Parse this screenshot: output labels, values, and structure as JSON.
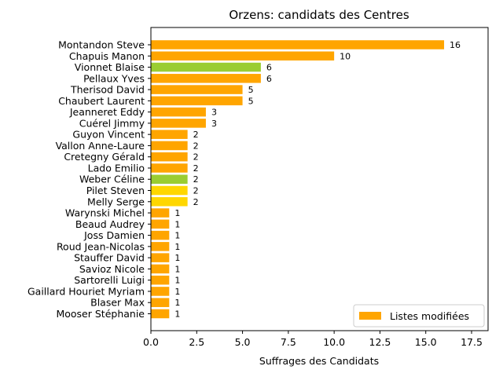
{
  "chart_data": {
    "type": "bar",
    "orientation": "horizontal",
    "title": "Orzens: candidats des Centres",
    "xlabel": "Suffrages des Candidats",
    "ylabel": "",
    "xlim": [
      0,
      18.4
    ],
    "xticks": [
      "0.0",
      "2.5",
      "5.0",
      "7.5",
      "10.0",
      "12.5",
      "15.0",
      "17.5"
    ],
    "grid": false,
    "legend": {
      "placement": "bottom-right",
      "entries": [
        {
          "label": "Listes modifiées",
          "color": "#FFA500"
        }
      ]
    },
    "categories": [
      "Montandon Steve",
      "Chapuis Manon",
      "Vionnet Blaise",
      "Pellaux Yves",
      "Therisod David",
      "Chaubert Laurent",
      "Jeanneret Eddy",
      "Cuérel Jimmy",
      "Guyon Vincent",
      "Vallon Anne-Laure",
      "Cretegny Gérald",
      "Lado Emilio",
      "Weber Céline",
      "Pilet Steven",
      "Melly Serge",
      "Warynski Michel",
      "Beaud Audrey",
      "Joss Damien",
      "Roud Jean-Nicolas",
      "Stauffer David",
      "Savioz Nicole",
      "Sartorelli Luigi",
      "Gaillard Houriet Myriam",
      "Blaser Max",
      "Mooser Stéphanie"
    ],
    "values": [
      16,
      10,
      6,
      6,
      5,
      5,
      3,
      3,
      2,
      2,
      2,
      2,
      2,
      2,
      2,
      1,
      1,
      1,
      1,
      1,
      1,
      1,
      1,
      1,
      1
    ],
    "value_labels": [
      "16",
      "10",
      "6",
      "6",
      "5",
      "5",
      "3",
      "3",
      "2",
      "2",
      "2",
      "2",
      "2",
      "2",
      "2",
      "1",
      "1",
      "1",
      "1",
      "1",
      "1",
      "1",
      "1",
      "1",
      "1"
    ],
    "colors": [
      "#FFA500",
      "#FFA500",
      "#9ACD32",
      "#FFA500",
      "#FFA500",
      "#FFA500",
      "#FFA500",
      "#FFA500",
      "#FFA500",
      "#FFA500",
      "#FFA500",
      "#FFA500",
      "#9ACD32",
      "#FFD700",
      "#FFD700",
      "#FFA500",
      "#FFA500",
      "#FFA500",
      "#FFA500",
      "#FFA500",
      "#FFA500",
      "#FFA500",
      "#FFA500",
      "#FFA500",
      "#FFA500"
    ]
  }
}
